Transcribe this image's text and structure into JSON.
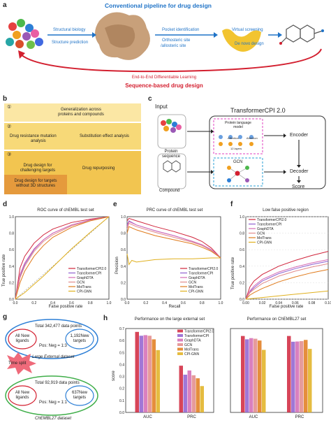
{
  "panel_a": {
    "label": "a",
    "title": "Conventional pipeline for drug design",
    "step_labels": [
      "Structural biology",
      "Structure prediction",
      "Pocket identification",
      "Orthosteric site",
      "/allosteric site",
      "Virtual screening",
      "De novo design"
    ],
    "e2e_label": "End-to-End Differentiable Learning",
    "e2e_title": "Sequence-based drug design"
  },
  "panel_b": {
    "label": "b",
    "rows": [
      {
        "num": "①",
        "lines": [
          "Generalization across",
          "proteins and compounds"
        ]
      },
      {
        "num": "②",
        "left": [
          "Drug resistance mutation",
          "analysis"
        ],
        "right": [
          "Substitution effect analysis"
        ]
      },
      {
        "num": "③",
        "left": [
          "Drug design for",
          "challenging targets"
        ],
        "right": [
          "Drug repurposing"
        ],
        "extra": [
          "Drug design for targets",
          "without 3D structures"
        ]
      }
    ]
  },
  "panel_c": {
    "label": "c",
    "input": "Input",
    "protein": [
      "Protein",
      "sequence"
    ],
    "compound": "Compound",
    "model": "TransformerCPI 2.0",
    "plm": [
      "Protein language",
      "model"
    ],
    "plm_small": [
      "Attention",
      "Attention"
    ],
    "layers": "12 layers",
    "gcn": "GCN",
    "encoder": "Encoder",
    "decoder": "Decoder",
    "score": "Score"
  },
  "panel_d": {
    "label": "d",
    "title": "ROC curve of chEMBL test set",
    "xlabel": "False positive rate",
    "ylabel": "True positive rate",
    "ticks": [
      "0.0",
      "0.2",
      "0.4",
      "0.6",
      "0.8",
      "1.0"
    ]
  },
  "panel_e": {
    "label": "e",
    "title": "PRC curve of chEMBL test set",
    "xlabel": "Recall",
    "ylabel": "Precision",
    "ticks": [
      "0.0",
      "0.2",
      "0.4",
      "0.6",
      "0.8",
      "1.0"
    ]
  },
  "panel_f": {
    "label": "f",
    "title": "Low false positive region",
    "xlabel": "False positive rate",
    "ylabel": "True positive rate",
    "xticks": [
      "0.00",
      "0.02",
      "0.04",
      "0.06",
      "0.08",
      "0.10"
    ],
    "yticks": [
      "0.0",
      "0.2",
      "0.4",
      "0.6",
      "0.8",
      "1.0"
    ]
  },
  "legend_names": [
    "TransformerCPI2.0",
    "TransformerCPI",
    "GraphDTA",
    "GCN",
    "MolTrans",
    "CPI-GNN"
  ],
  "colors": {
    "TransformerCPI2.0": "#d0243b",
    "TransformerCPI": "#8f5fcf",
    "GraphDTA": "#d46ab4",
    "GCN": "#e28a8a",
    "MolTrans": "#e07a1a",
    "CPI-GNN": "#e0b01e",
    "pipeline_blue": "#1f73c7",
    "e2e_red": "#d31f2f"
  },
  "panel_g": {
    "label": "g",
    "top": {
      "total": "Total 342,477 data points",
      "left": [
        "All New",
        "ligands"
      ],
      "right": [
        "1,192New",
        "targets"
      ],
      "ratio": "Pos: Neg = 1:3",
      "name": "Large External dataset"
    },
    "split": "Time split",
    "bottom": {
      "total": "Total 92,919 data points",
      "left": [
        "All New",
        "ligands"
      ],
      "right": [
        "637New",
        "targets"
      ],
      "ratio": "Pos: Neg = 1:1",
      "name": "ChEMBL27 dataset"
    }
  },
  "panel_h": {
    "label": "h",
    "ylabel": "score",
    "yticks": [
      "0.0",
      "0.1",
      "0.2",
      "0.3",
      "0.4",
      "0.5",
      "0.6",
      "0.7"
    ]
  },
  "chart_data": [
    {
      "type": "line",
      "title": "ROC curve of chEMBL test set",
      "xlabel": "False positive rate",
      "ylabel": "True positive rate",
      "xlim": [
        0,
        1
      ],
      "ylim": [
        0,
        1
      ],
      "legend": "bottom-right",
      "series": [
        {
          "name": "TransformerCPI2.0",
          "x": [
            0,
            0.05,
            0.1,
            0.2,
            0.3,
            0.4,
            0.6,
            0.8,
            1.0
          ],
          "y": [
            0,
            0.38,
            0.52,
            0.68,
            0.78,
            0.85,
            0.93,
            0.97,
            1.0
          ]
        },
        {
          "name": "TransformerCPI",
          "x": [
            0,
            0.05,
            0.1,
            0.2,
            0.3,
            0.4,
            0.6,
            0.8,
            1.0
          ],
          "y": [
            0,
            0.28,
            0.42,
            0.6,
            0.72,
            0.8,
            0.9,
            0.96,
            1.0
          ]
        },
        {
          "name": "GraphDTA",
          "x": [
            0,
            0.05,
            0.1,
            0.2,
            0.3,
            0.4,
            0.6,
            0.8,
            1.0
          ],
          "y": [
            0,
            0.3,
            0.44,
            0.61,
            0.72,
            0.8,
            0.9,
            0.96,
            1.0
          ]
        },
        {
          "name": "GCN",
          "x": [
            0,
            0.05,
            0.1,
            0.2,
            0.3,
            0.4,
            0.6,
            0.8,
            1.0
          ],
          "y": [
            0,
            0.26,
            0.4,
            0.58,
            0.7,
            0.78,
            0.89,
            0.95,
            1.0
          ]
        },
        {
          "name": "MolTrans",
          "x": [
            0,
            0.05,
            0.1,
            0.2,
            0.3,
            0.4,
            0.6,
            0.8,
            1.0
          ],
          "y": [
            0,
            0.2,
            0.34,
            0.52,
            0.65,
            0.75,
            0.87,
            0.95,
            1.0
          ]
        },
        {
          "name": "CPI-GNN",
          "x": [
            0,
            0.1,
            0.2,
            0.3,
            0.4,
            0.5,
            0.6,
            0.8,
            1.0
          ],
          "y": [
            0,
            0.08,
            0.18,
            0.28,
            0.39,
            0.5,
            0.61,
            0.81,
            1.0
          ]
        }
      ]
    },
    {
      "type": "line",
      "title": "PRC curve of chEMBL test set",
      "xlabel": "Recall",
      "ylabel": "Precision",
      "xlim": [
        0,
        1
      ],
      "ylim": [
        0,
        1
      ],
      "legend": "bottom-right",
      "series": [
        {
          "name": "TransformerCPI2.0",
          "x": [
            0,
            0.02,
            0.1,
            0.3,
            0.5,
            0.7,
            0.8,
            0.9,
            1.0
          ],
          "y": [
            0.95,
            0.98,
            0.95,
            0.88,
            0.82,
            0.75,
            0.7,
            0.62,
            0.5
          ]
        },
        {
          "name": "TransformerCPI",
          "x": [
            0,
            0.02,
            0.1,
            0.3,
            0.5,
            0.7,
            0.8,
            0.9,
            1.0
          ],
          "y": [
            0.9,
            0.95,
            0.9,
            0.83,
            0.77,
            0.7,
            0.66,
            0.6,
            0.5
          ]
        },
        {
          "name": "GraphDTA",
          "x": [
            0,
            0.02,
            0.1,
            0.3,
            0.5,
            0.7,
            0.8,
            0.9,
            1.0
          ],
          "y": [
            0.88,
            0.94,
            0.9,
            0.83,
            0.77,
            0.7,
            0.66,
            0.6,
            0.5
          ]
        },
        {
          "name": "GCN",
          "x": [
            0,
            0.02,
            0.1,
            0.3,
            0.5,
            0.7,
            0.8,
            0.9,
            1.0
          ],
          "y": [
            0.85,
            0.92,
            0.88,
            0.81,
            0.75,
            0.69,
            0.65,
            0.59,
            0.5
          ]
        },
        {
          "name": "MolTrans",
          "x": [
            0,
            0.02,
            0.1,
            0.3,
            0.5,
            0.7,
            0.8,
            0.9,
            1.0
          ],
          "y": [
            0.8,
            0.88,
            0.84,
            0.77,
            0.72,
            0.67,
            0.63,
            0.58,
            0.5
          ]
        },
        {
          "name": "CPI-GNN",
          "x": [
            0,
            0.02,
            0.05,
            0.1,
            0.3,
            0.5,
            0.7,
            0.9,
            1.0
          ],
          "y": [
            0.55,
            0.42,
            0.47,
            0.45,
            0.48,
            0.49,
            0.49,
            0.5,
            0.5
          ]
        }
      ]
    },
    {
      "type": "line",
      "title": "Low false positive region",
      "xlabel": "False positive rate",
      "ylabel": "True positive rate",
      "xlim": [
        0,
        0.1
      ],
      "ylim": [
        0,
        1
      ],
      "legend": "top-left",
      "series": [
        {
          "name": "TransformerCPI2.0",
          "x": [
            0,
            0.005,
            0.01,
            0.02,
            0.04,
            0.06,
            0.08,
            0.1
          ],
          "y": [
            0,
            0.15,
            0.22,
            0.3,
            0.4,
            0.47,
            0.53,
            0.58
          ]
        },
        {
          "name": "TransformerCPI",
          "x": [
            0,
            0.005,
            0.01,
            0.02,
            0.04,
            0.06,
            0.08,
            0.1
          ],
          "y": [
            0,
            0.09,
            0.14,
            0.22,
            0.31,
            0.37,
            0.42,
            0.46
          ]
        },
        {
          "name": "GraphDTA",
          "x": [
            0,
            0.005,
            0.01,
            0.02,
            0.04,
            0.06,
            0.08,
            0.1
          ],
          "y": [
            0,
            0.1,
            0.16,
            0.24,
            0.33,
            0.39,
            0.44,
            0.48
          ]
        },
        {
          "name": "GCN",
          "x": [
            0,
            0.005,
            0.01,
            0.02,
            0.04,
            0.06,
            0.08,
            0.1
          ],
          "y": [
            0,
            0.08,
            0.12,
            0.19,
            0.28,
            0.34,
            0.39,
            0.43
          ]
        },
        {
          "name": "MolTrans",
          "x": [
            0,
            0.005,
            0.01,
            0.02,
            0.04,
            0.06,
            0.08,
            0.1
          ],
          "y": [
            0,
            0.05,
            0.08,
            0.13,
            0.21,
            0.27,
            0.32,
            0.36
          ]
        },
        {
          "name": "CPI-GNN",
          "x": [
            0,
            0.01,
            0.02,
            0.04,
            0.06,
            0.08,
            0.1
          ],
          "y": [
            0,
            0.01,
            0.02,
            0.04,
            0.06,
            0.08,
            0.1
          ]
        }
      ]
    },
    {
      "type": "bar",
      "title": "Performance on the large external set",
      "categories": [
        "AUC",
        "PRC"
      ],
      "ylabel": "score",
      "ylim": [
        0,
        0.7
      ],
      "legend": "top-right",
      "series": [
        {
          "name": "TransformerCPI2.0",
          "values": [
            0.672,
            0.39
          ]
        },
        {
          "name": "TransformerCPI",
          "values": [
            0.64,
            0.315
          ]
        },
        {
          "name": "GraphDTA",
          "values": [
            0.645,
            0.35
          ]
        },
        {
          "name": "GCN",
          "values": [
            0.64,
            0.31
          ]
        },
        {
          "name": "MolTrans",
          "values": [
            0.61,
            0.285
          ]
        },
        {
          "name": "CPI-GNN",
          "values": [
            0.52,
            0.22
          ]
        }
      ]
    },
    {
      "type": "bar",
      "title": "Performance on ChEMBL27 set",
      "categories": [
        "AUC",
        "PRC"
      ],
      "ylim": [
        0,
        0.7
      ],
      "series": [
        {
          "name": "TransformerCPI2.0",
          "values": [
            0.638,
            0.638
          ]
        },
        {
          "name": "TransformerCPI",
          "values": [
            0.61,
            0.59
          ]
        },
        {
          "name": "GraphDTA",
          "values": [
            0.62,
            0.592
          ]
        },
        {
          "name": "GCN",
          "values": [
            0.615,
            0.595
          ]
        },
        {
          "name": "MolTrans",
          "values": [
            0.6,
            0.605
          ]
        },
        {
          "name": "CPI-GNN",
          "values": [
            0.522,
            0.53
          ]
        }
      ]
    }
  ]
}
